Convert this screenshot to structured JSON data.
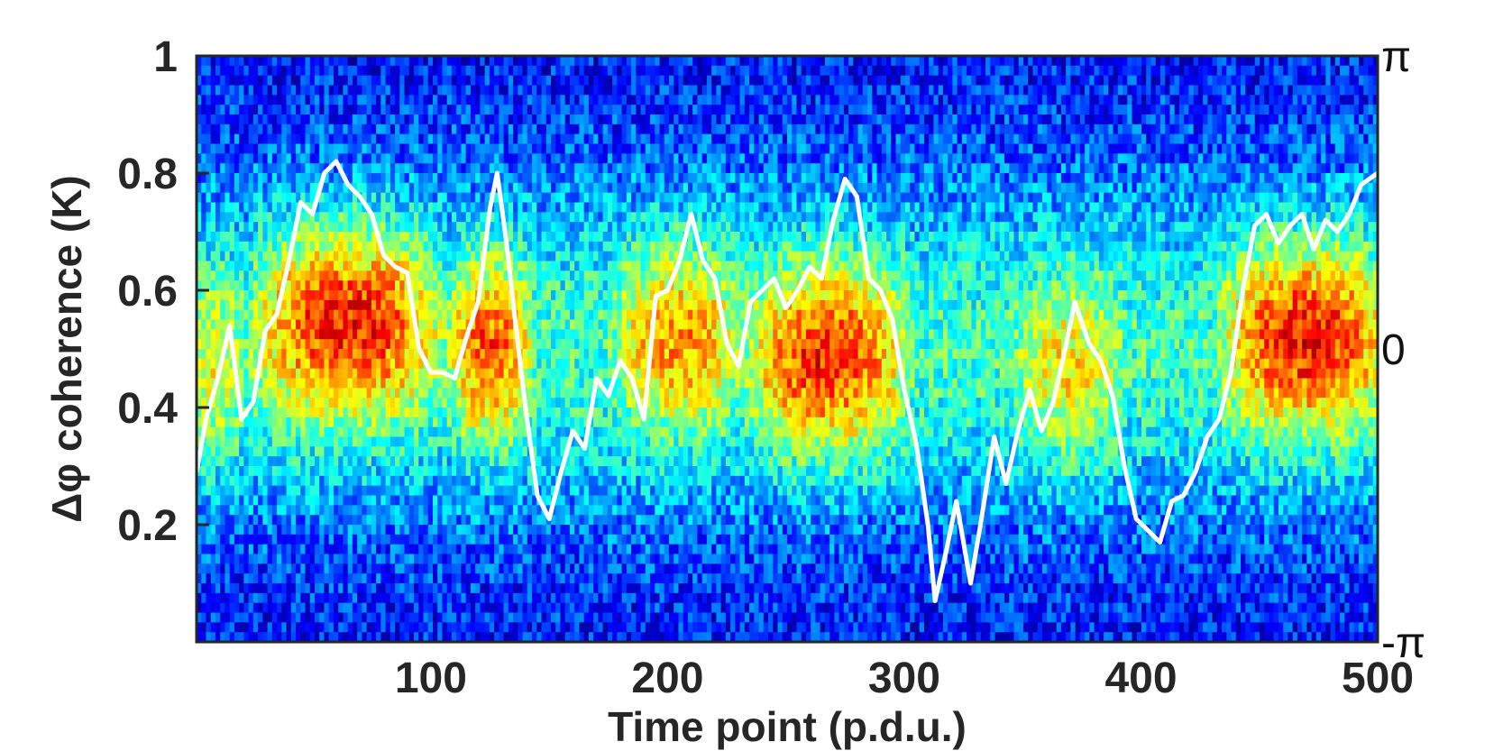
{
  "chart_data": {
    "type": "heatmap",
    "title": "",
    "xlabel": "Time point (p.d.u.)",
    "ylabel": "Δφ coherence (K)",
    "xlim": [
      1,
      500
    ],
    "ylim": [
      0,
      1
    ],
    "x_ticks": [
      {
        "value": 100,
        "label": "100"
      },
      {
        "value": 200,
        "label": "200"
      },
      {
        "value": 300,
        "label": "300"
      },
      {
        "value": 400,
        "label": "400"
      },
      {
        "value": 500,
        "label": "500"
      }
    ],
    "y_ticks": [
      {
        "value": 0.2,
        "label": "0.2"
      },
      {
        "value": 0.4,
        "label": "0.4"
      },
      {
        "value": 0.6,
        "label": "0.6"
      },
      {
        "value": 0.8,
        "label": "0.8"
      },
      {
        "value": 1.0,
        "label": "1"
      }
    ],
    "right_axis": {
      "range": [
        "-π",
        "π"
      ],
      "ticks": [
        {
          "frac": 1.0,
          "label": "π"
        },
        {
          "frac": 0.5,
          "label": "0"
        },
        {
          "frac": 0.0,
          "label": "-π"
        }
      ]
    },
    "colormap": "jet",
    "grid": false,
    "heatmap_bands": [
      {
        "x_range": [
          1,
          15
        ],
        "center": 0.45,
        "intensity": 0.35
      },
      {
        "x_range": [
          30,
          100
        ],
        "center": 0.55,
        "intensity": 0.95
      },
      {
        "x_range": [
          115,
          135
        ],
        "center": 0.5,
        "intensity": 0.8
      },
      {
        "x_range": [
          185,
          225
        ],
        "center": 0.52,
        "intensity": 0.65
      },
      {
        "x_range": [
          240,
          295
        ],
        "center": 0.48,
        "intensity": 0.9
      },
      {
        "x_range": [
          355,
          385
        ],
        "center": 0.45,
        "intensity": 0.45
      },
      {
        "x_range": [
          440,
          500
        ],
        "center": 0.52,
        "intensity": 0.95
      }
    ],
    "series": [
      {
        "color": "#ffffff",
        "x": [
          1,
          5,
          10,
          15,
          20,
          25,
          30,
          35,
          40,
          45,
          50,
          55,
          60,
          65,
          70,
          75,
          80,
          85,
          90,
          95,
          100,
          105,
          110,
          115,
          120,
          125,
          128,
          132,
          135,
          140,
          145,
          150,
          155,
          160,
          165,
          170,
          175,
          180,
          185,
          190,
          195,
          200,
          205,
          210,
          215,
          220,
          225,
          230,
          235,
          240,
          245,
          250,
          255,
          260,
          265,
          270,
          275,
          280,
          285,
          290,
          295,
          300,
          305,
          310,
          313,
          318,
          322,
          328,
          333,
          338,
          343,
          348,
          353,
          358,
          363,
          368,
          372,
          378,
          383,
          388,
          393,
          398,
          403,
          408,
          413,
          418,
          423,
          428,
          433,
          438,
          443,
          448,
          453,
          458,
          463,
          468,
          473,
          478,
          483,
          488,
          493,
          500
        ],
        "y": [
          0.29,
          0.38,
          0.45,
          0.54,
          0.38,
          0.41,
          0.53,
          0.56,
          0.65,
          0.75,
          0.73,
          0.8,
          0.82,
          0.78,
          0.76,
          0.73,
          0.66,
          0.64,
          0.63,
          0.5,
          0.46,
          0.46,
          0.45,
          0.52,
          0.58,
          0.74,
          0.8,
          0.68,
          0.57,
          0.4,
          0.25,
          0.21,
          0.29,
          0.36,
          0.33,
          0.45,
          0.42,
          0.48,
          0.45,
          0.38,
          0.59,
          0.6,
          0.65,
          0.73,
          0.65,
          0.62,
          0.51,
          0.47,
          0.58,
          0.6,
          0.62,
          0.57,
          0.6,
          0.64,
          0.62,
          0.72,
          0.79,
          0.76,
          0.62,
          0.6,
          0.55,
          0.43,
          0.34,
          0.2,
          0.07,
          0.16,
          0.24,
          0.1,
          0.22,
          0.35,
          0.27,
          0.36,
          0.43,
          0.36,
          0.41,
          0.5,
          0.58,
          0.51,
          0.48,
          0.42,
          0.3,
          0.21,
          0.19,
          0.17,
          0.24,
          0.25,
          0.29,
          0.35,
          0.38,
          0.46,
          0.6,
          0.71,
          0.73,
          0.68,
          0.71,
          0.73,
          0.67,
          0.72,
          0.7,
          0.73,
          0.78,
          0.8
        ]
      }
    ]
  }
}
